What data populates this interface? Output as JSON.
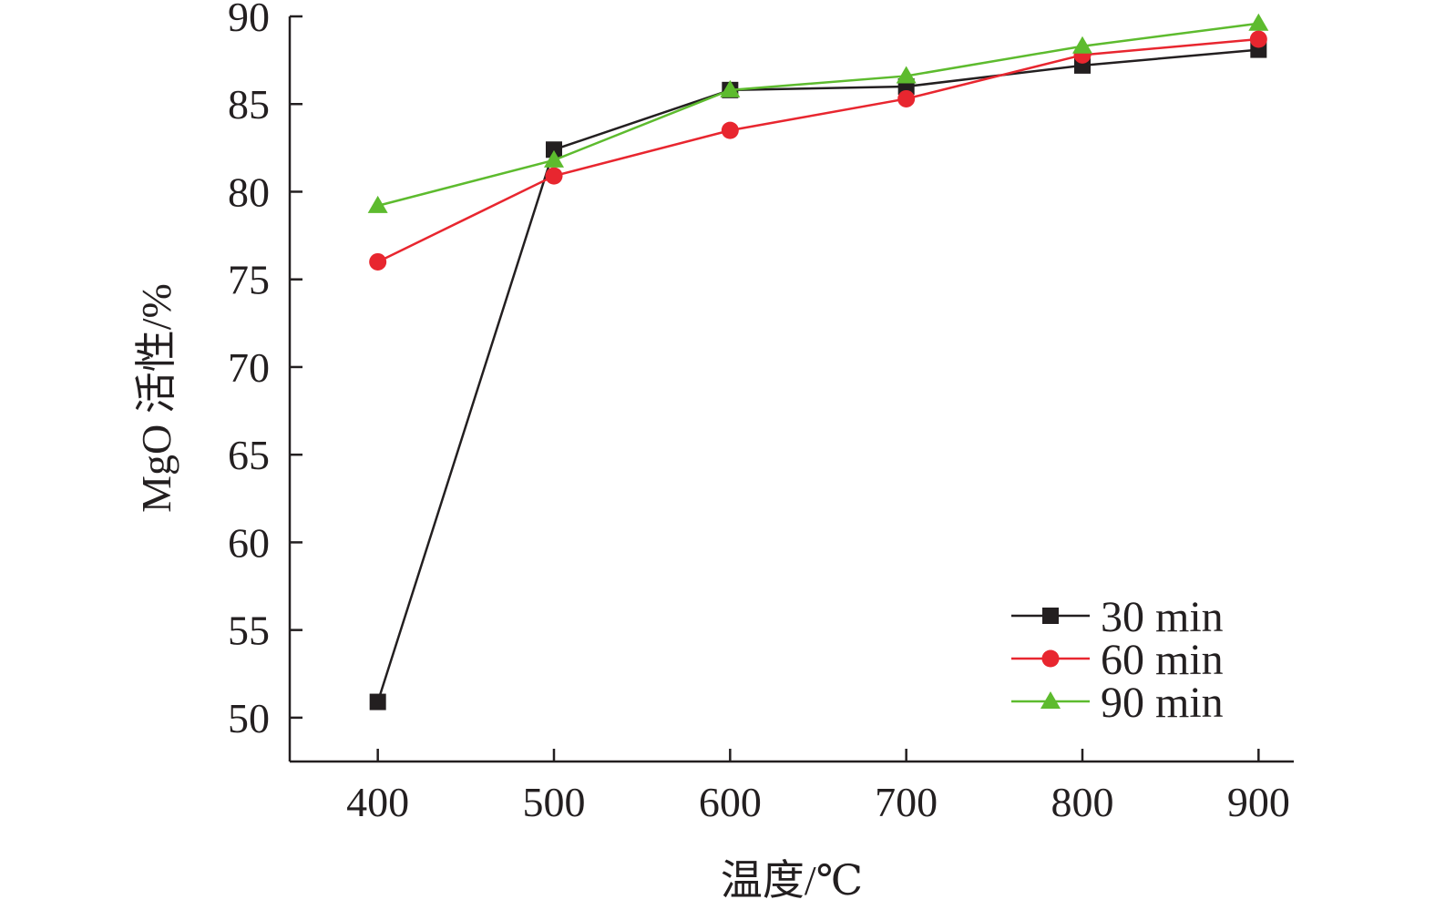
{
  "chart_data": {
    "type": "line",
    "title": "",
    "xlabel": "温度/℃",
    "ylabel": "MgO 活性/%",
    "x": [
      400,
      500,
      600,
      700,
      800,
      900
    ],
    "xlim": [
      350,
      920
    ],
    "ylim": [
      47.5,
      90
    ],
    "yticks": [
      50,
      55,
      60,
      65,
      70,
      75,
      80,
      85,
      90
    ],
    "grid": false,
    "legend_position": "bottom-right",
    "series": [
      {
        "name": "30 min",
        "marker": "square",
        "color": "#231f20",
        "values": [
          50.9,
          82.4,
          85.8,
          86.0,
          87.2,
          88.1
        ]
      },
      {
        "name": "60 min",
        "marker": "circle",
        "color": "#e8262f",
        "values": [
          76.0,
          80.9,
          83.5,
          85.3,
          87.8,
          88.7
        ]
      },
      {
        "name": "90 min",
        "marker": "triangle",
        "color": "#5dbb2e",
        "values": [
          79.2,
          81.8,
          85.8,
          86.6,
          88.3,
          89.6
        ]
      }
    ]
  }
}
